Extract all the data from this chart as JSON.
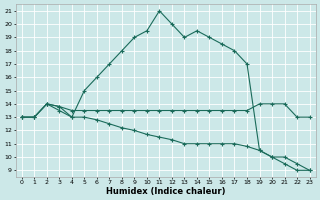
{
  "xlabel": "Humidex (Indice chaleur)",
  "bg_color": "#cce8e8",
  "grid_color": "#ffffff",
  "line_color": "#1a6b5a",
  "xlim": [
    -0.5,
    23.5
  ],
  "ylim": [
    8.5,
    21.5
  ],
  "yticks": [
    9,
    10,
    11,
    12,
    13,
    14,
    15,
    16,
    17,
    18,
    19,
    20,
    21
  ],
  "xticks": [
    0,
    1,
    2,
    3,
    4,
    5,
    6,
    7,
    8,
    9,
    10,
    11,
    12,
    13,
    14,
    15,
    16,
    17,
    18,
    19,
    20,
    21,
    22,
    23
  ],
  "series1_x": [
    0,
    1,
    2,
    3,
    4,
    5,
    6,
    7,
    8,
    9,
    10,
    11,
    12,
    13,
    14,
    15,
    16,
    17,
    18,
    19,
    20,
    21,
    22,
    23
  ],
  "series1_y": [
    13.0,
    13.0,
    14.0,
    13.5,
    13.0,
    15.0,
    16.0,
    17.0,
    18.0,
    19.0,
    19.5,
    21.0,
    20.0,
    19.0,
    19.5,
    19.0,
    18.5,
    18.0,
    17.0,
    10.5,
    10.0,
    9.5,
    9.0,
    9.0
  ],
  "series2_x": [
    0,
    1,
    2,
    3,
    4,
    5,
    6,
    7,
    8,
    9,
    10,
    11,
    12,
    13,
    14,
    15,
    16,
    17,
    18,
    19,
    20,
    21,
    22,
    23
  ],
  "series2_y": [
    13.0,
    13.0,
    14.0,
    13.8,
    13.5,
    13.5,
    13.5,
    13.5,
    13.5,
    13.5,
    13.5,
    13.5,
    13.5,
    13.5,
    13.5,
    13.5,
    13.5,
    13.5,
    13.5,
    14.0,
    14.0,
    14.0,
    13.0,
    13.0
  ],
  "series3_x": [
    0,
    1,
    2,
    3,
    4,
    5,
    6,
    7,
    8,
    9,
    10,
    11,
    12,
    13,
    14,
    15,
    16,
    17,
    18,
    19,
    20,
    21,
    22,
    23
  ],
  "series3_y": [
    13.0,
    13.0,
    14.0,
    13.8,
    13.0,
    13.0,
    12.8,
    12.5,
    12.2,
    12.0,
    11.7,
    11.5,
    11.3,
    11.0,
    11.0,
    11.0,
    11.0,
    11.0,
    10.8,
    10.5,
    10.0,
    10.0,
    9.5,
    9.0
  ]
}
